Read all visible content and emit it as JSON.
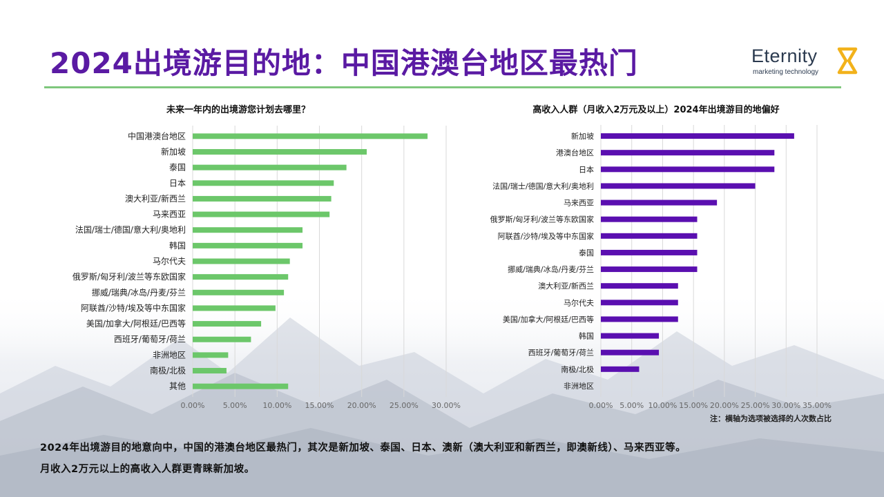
{
  "header": {
    "title": "2024出境游目的地：中国港澳台地区最热门",
    "logo_word": "Eternity",
    "logo_sub": "marketing technology"
  },
  "colors": {
    "title": "#5a1aa3",
    "green_bar": "#6cc76a",
    "purple_bar": "#5a0fb0",
    "rule": "#7ec77c"
  },
  "chart_data": [
    {
      "type": "bar",
      "orientation": "horizontal",
      "title": "未来一年内的出境游您计划去哪里？",
      "categories": [
        "中国港澳台地区",
        "新加坡",
        "泰国",
        "日本",
        "澳大利亚/新西兰",
        "马来西亚",
        "法国/瑞士/德国/意大利/奥地利",
        "韩国",
        "马尔代夫",
        "俄罗斯/匈牙利/波兰等东欧国家",
        "挪威/瑞典/冰岛/丹麦/芬兰",
        "阿联酋/沙特/埃及等中东国家",
        "美国/加拿大/阿根廷/巴西等",
        "西班牙/葡萄牙/荷兰",
        "非洲地区",
        "南极/北极",
        "其他"
      ],
      "values": [
        27.8,
        20.6,
        18.2,
        16.7,
        16.4,
        16.2,
        13.0,
        13.0,
        11.5,
        11.3,
        10.8,
        9.8,
        8.1,
        6.9,
        4.2,
        4.0,
        11.3
      ],
      "xlim": [
        0,
        30
      ],
      "ticks": [
        "0.00%",
        "5.00%",
        "10.00%",
        "15.00%",
        "20.00%",
        "25.00%",
        "30.00%"
      ],
      "grid": true,
      "color": "#6cc76a"
    },
    {
      "type": "bar",
      "orientation": "horizontal",
      "title": "高收入人群（月收入2万元及以上）2024年出境游目的地偏好",
      "categories": [
        "新加坡",
        "港澳台地区",
        "日本",
        "法国/瑞士/德国/意大利/奥地利",
        "马来西亚",
        "俄罗斯/匈牙利/波兰等东欧国家",
        "阿联酋/沙特/埃及等中东国家",
        "泰国",
        "挪威/瑞典/冰岛/丹麦/芬兰",
        "澳大利亚/新西兰",
        "马尔代夫",
        "美国/加拿大/阿根廷/巴西等",
        "韩国",
        "西班牙/葡萄牙/荷兰",
        "南极/北极",
        "非洲地区"
      ],
      "values": [
        31.3,
        28.1,
        28.1,
        25.0,
        18.8,
        15.6,
        15.6,
        15.6,
        15.6,
        12.5,
        12.5,
        12.5,
        9.4,
        9.4,
        6.2,
        0
      ],
      "xlim": [
        0,
        35
      ],
      "ticks": [
        "0.00%",
        "5.00%",
        "10.00%",
        "15.00%",
        "20.00%",
        "25.00%",
        "30.00%",
        "35.00%"
      ],
      "grid": true,
      "color": "#5a0fb0"
    }
  ],
  "note": "注：横轴为选项被选择的人次数占比",
  "summary": {
    "line1": "2024年出境游目的地意向中，中国的港澳台地区最热门，其次是新加坡、泰国、日本、澳新（澳大利亚和新西兰，即澳新线）、马来西亚等。",
    "line2": "月收入2万元以上的高收入人群更青睐新加坡。"
  }
}
